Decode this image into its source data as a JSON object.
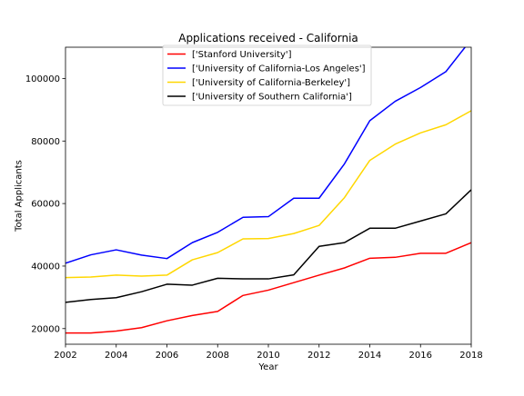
{
  "chart_data": {
    "type": "line",
    "title": "Applications received - California",
    "xlabel": "Year",
    "ylabel": "Total Applicants",
    "xlim": [
      2002,
      2018
    ],
    "ylim": [
      15000,
      110000
    ],
    "xticks": [
      2002,
      2004,
      2006,
      2008,
      2010,
      2012,
      2014,
      2016,
      2018
    ],
    "yticks": [
      20000,
      40000,
      60000,
      80000,
      100000
    ],
    "grid": false,
    "legend_position": "top-center",
    "x": [
      2002,
      2003,
      2004,
      2005,
      2006,
      2007,
      2008,
      2009,
      2010,
      2011,
      2012,
      2013,
      2014,
      2015,
      2016,
      2017,
      2018
    ],
    "series": [
      {
        "name": "['Stanford University']",
        "color": "#ff0000",
        "values": [
          18600,
          18600,
          19200,
          20300,
          22500,
          24200,
          25500,
          30600,
          32300,
          34700,
          37100,
          39400,
          42500,
          42800,
          44100,
          44100,
          47500
        ]
      },
      {
        "name": "['University of California-Los Angeles']",
        "color": "#0000ff",
        "values": [
          40900,
          43600,
          45200,
          43500,
          42400,
          47500,
          50800,
          55600,
          55800,
          61700,
          61700,
          72700,
          86500,
          92700,
          97100,
          102200,
          112500
        ]
      },
      {
        "name": "['University of California-Berkeley']",
        "color": "#ffd700",
        "values": [
          36300,
          36500,
          37100,
          36800,
          37100,
          42000,
          44300,
          48700,
          48800,
          50400,
          53000,
          61900,
          73800,
          79000,
          82600,
          85200,
          89700
        ]
      },
      {
        "name": "['University of Southern California']",
        "color": "#000000",
        "values": [
          28400,
          29300,
          29900,
          31800,
          34200,
          33900,
          36100,
          35900,
          35900,
          37200,
          46300,
          47500,
          52100,
          52100,
          54400,
          56700,
          64400
        ]
      }
    ]
  }
}
